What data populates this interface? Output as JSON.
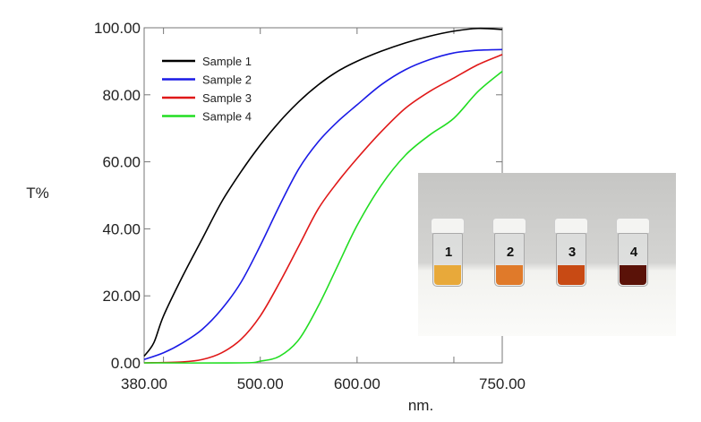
{
  "chart_data": {
    "type": "line",
    "title": "",
    "xlabel": "nm.",
    "ylabel": "T%",
    "xlim": [
      380,
      750
    ],
    "ylim": [
      0,
      100
    ],
    "x_tick_labels": [
      "380.00",
      "500.00",
      "600.00",
      "750.00"
    ],
    "x_tick_label_values": [
      380,
      500,
      600,
      750
    ],
    "x_tick_marks": [
      400,
      500,
      600,
      700
    ],
    "y_tick_labels": [
      "0.00",
      "20.00",
      "40.00",
      "60.00",
      "80.00",
      "100.00"
    ],
    "y_tick_values": [
      0,
      20,
      40,
      60,
      80,
      100
    ],
    "grid": false,
    "legend_position": "top-left",
    "series": [
      {
        "name": "Sample 1",
        "color": "#000000",
        "x": [
          380,
          390,
          400,
          420,
          440,
          460,
          480,
          500,
          520,
          540,
          560,
          580,
          600,
          625,
          650,
          675,
          700,
          725,
          750
        ],
        "y": [
          2,
          6,
          14,
          26,
          37,
          48,
          57,
          65,
          72,
          78,
          83,
          87,
          90,
          93,
          95.5,
          97.5,
          99,
          99.8,
          99.5
        ]
      },
      {
        "name": "Sample 2",
        "color": "#1a1ae6",
        "x": [
          380,
          400,
          420,
          440,
          460,
          480,
          500,
          520,
          540,
          560,
          580,
          600,
          625,
          650,
          675,
          700,
          725,
          750
        ],
        "y": [
          1,
          3,
          6,
          10,
          16,
          24,
          35,
          47,
          58,
          66,
          72,
          77,
          83,
          87.5,
          90.5,
          92.5,
          93.3,
          93.5
        ]
      },
      {
        "name": "Sample 3",
        "color": "#e01818",
        "x": [
          380,
          420,
          440,
          460,
          480,
          500,
          520,
          540,
          560,
          580,
          600,
          625,
          650,
          675,
          700,
          725,
          750
        ],
        "y": [
          0,
          0.3,
          1,
          3,
          7,
          14,
          24,
          35,
          46,
          54,
          61,
          69,
          76,
          81,
          85,
          89,
          92
        ]
      },
      {
        "name": "Sample 4",
        "color": "#22dd22",
        "x": [
          380,
          480,
          500,
          520,
          540,
          560,
          580,
          600,
          625,
          650,
          675,
          700,
          725,
          750
        ],
        "y": [
          0,
          0,
          0.5,
          2,
          7,
          17,
          29,
          41,
          53,
          62,
          68,
          73,
          81,
          87
        ]
      }
    ]
  },
  "inset": {
    "vials": [
      {
        "label": "1",
        "color": "#e8a93a"
      },
      {
        "label": "2",
        "color": "#e07a2a"
      },
      {
        "label": "3",
        "color": "#c84a14"
      },
      {
        "label": "4",
        "color": "#5a1208"
      }
    ]
  }
}
